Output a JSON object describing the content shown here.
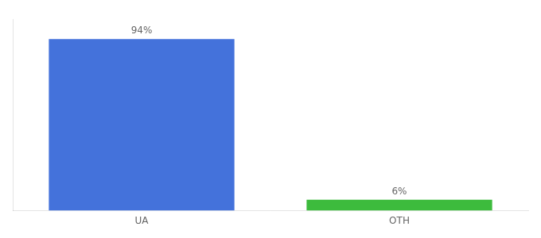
{
  "chart_data": {
    "type": "bar",
    "categories": [
      "UA",
      "OTH"
    ],
    "values": [
      94,
      6
    ],
    "colors": [
      "#4472db",
      "#3dbb3d"
    ],
    "value_labels": [
      "94%",
      "6%"
    ],
    "data_labels": true,
    "ylim": [
      0,
      105
    ],
    "grid": false,
    "tick_labels": "x"
  }
}
